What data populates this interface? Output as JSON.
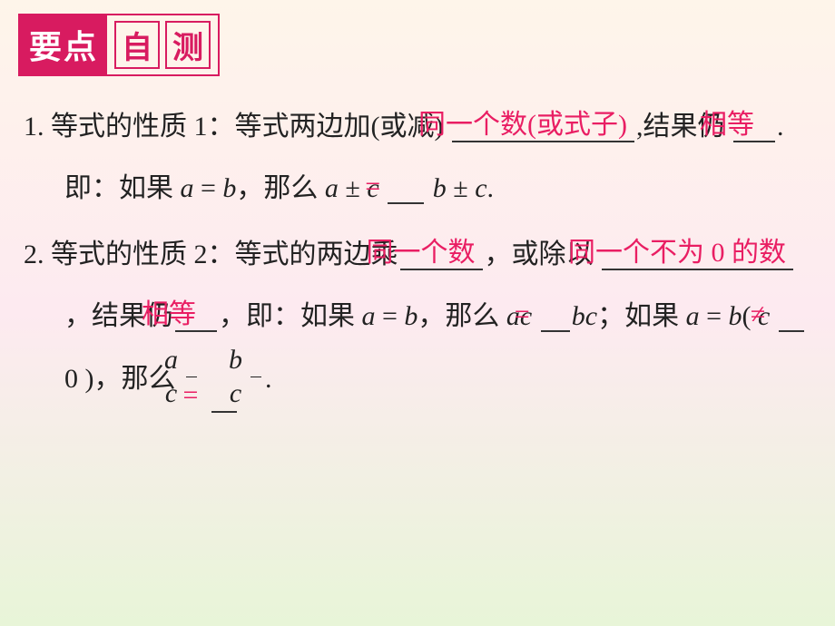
{
  "header": {
    "left": "要点",
    "char1": "自",
    "char2": "测"
  },
  "q1": {
    "num": "1.",
    "t1": "等式的性质 1：等式两边加(或减)",
    "a1": "同一个数(或式子)",
    "t2": ",结果仍",
    "a2": "相等",
    "t3": ". 即：如果 ",
    "eq1_l": "a",
    "eq1_op": " = ",
    "eq1_r": "b",
    "t4": "，那么 ",
    "eq2_l": "a",
    "eq2_pm": " ± ",
    "eq2_r": "c",
    "a3": "=",
    "eq3_l": "b",
    "eq3_pm": " ± ",
    "eq3_r": "c",
    "t5": "."
  },
  "q2": {
    "num": "2.",
    "t1": "等式的性质 2：等式的两边乘",
    "a1": "同一个数",
    "t2": "，或除以",
    "a2": "同一个不为 0 的数",
    "t3": "，结果仍",
    "a3": "相等",
    "t4": "，即：如果 ",
    "eq1_l": "a",
    "eq1_mid": " = ",
    "eq1_r": "b",
    "t5": "，那么 ",
    "eq2_l": "ac",
    "a4": "=",
    "eq2_r": "bc",
    "t6": "；如果 ",
    "eq3_l": "a",
    "eq3_mid": " = ",
    "eq3_r": "b",
    "t7": "( ",
    "eq3_c": "c",
    "a5": "≠",
    "t8": "0 )，那么",
    "frac1_num": "a",
    "frac1_den": "c",
    "a6": "=",
    "frac2_num": "b",
    "frac2_den": "c",
    "t9": "."
  },
  "colors": {
    "accent": "#d81b60",
    "answer": "#e91e63",
    "text": "#222222",
    "bg_top": "#fef5ea",
    "bg_mid": "#fdeaf0",
    "bg_bot": "#e8f5d8"
  }
}
